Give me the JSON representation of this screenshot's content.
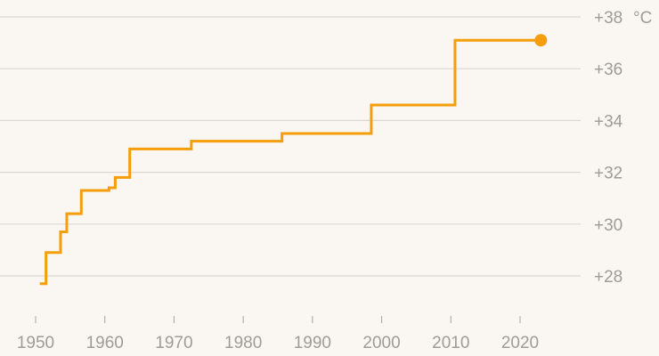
{
  "chart_data": {
    "type": "line",
    "step": "after",
    "title": "",
    "xlabel": "",
    "ylabel": "",
    "y_unit": "°C",
    "xlim": [
      1947,
      2030
    ],
    "ylim": [
      26.5,
      38.4
    ],
    "x_ticks": [
      1950,
      1960,
      1970,
      1980,
      1990,
      2000,
      2010,
      2020
    ],
    "y_ticks": [
      28,
      30,
      32,
      34,
      36,
      38
    ],
    "x_tick_labels": [
      "1950",
      "1960",
      "1970",
      "1980",
      "1990",
      "2000",
      "2010",
      "2020"
    ],
    "y_tick_labels": [
      "+28",
      "+30",
      "+32",
      "+34",
      "+36",
      "+38"
    ],
    "grid": "horizontal",
    "legend": "none",
    "series": [
      {
        "color": "#f59e0b",
        "end_marker": true,
        "points": [
          {
            "x": 1950.6,
            "y": 27.7
          },
          {
            "x": 1951.5,
            "y": 28.9
          },
          {
            "x": 1953.6,
            "y": 29.7
          },
          {
            "x": 1954.5,
            "y": 30.4
          },
          {
            "x": 1956.6,
            "y": 31.3
          },
          {
            "x": 1960.6,
            "y": 31.4
          },
          {
            "x": 1961.5,
            "y": 31.8
          },
          {
            "x": 1963.6,
            "y": 32.9
          },
          {
            "x": 1972.5,
            "y": 33.2
          },
          {
            "x": 1985.6,
            "y": 33.5
          },
          {
            "x": 1998.5,
            "y": 34.6
          },
          {
            "x": 2010.6,
            "y": 37.1
          },
          {
            "x": 2023.0,
            "y": 37.1
          }
        ]
      }
    ]
  }
}
